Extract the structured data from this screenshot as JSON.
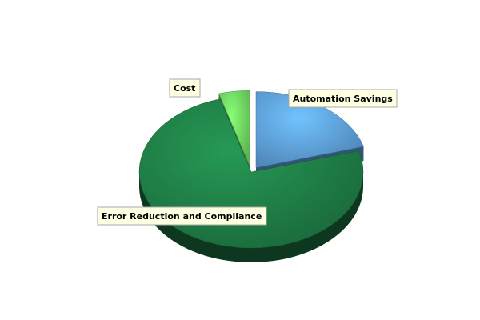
{
  "chart_data": {
    "type": "pie",
    "style": "3d",
    "categories": [
      "Automation Savings",
      "Error Reduction and Compliance",
      "Cost"
    ],
    "values": [
      20.5,
      75.0,
      4.5
    ],
    "unit": "percent",
    "exploded": [
      "Automation Savings",
      "Cost"
    ],
    "colors": {
      "Automation Savings": "#5b9bd5",
      "Error Reduction and Compliance": "#1e7a44",
      "Cost": "#6ccf5e"
    },
    "legend": "none",
    "title": ""
  }
}
